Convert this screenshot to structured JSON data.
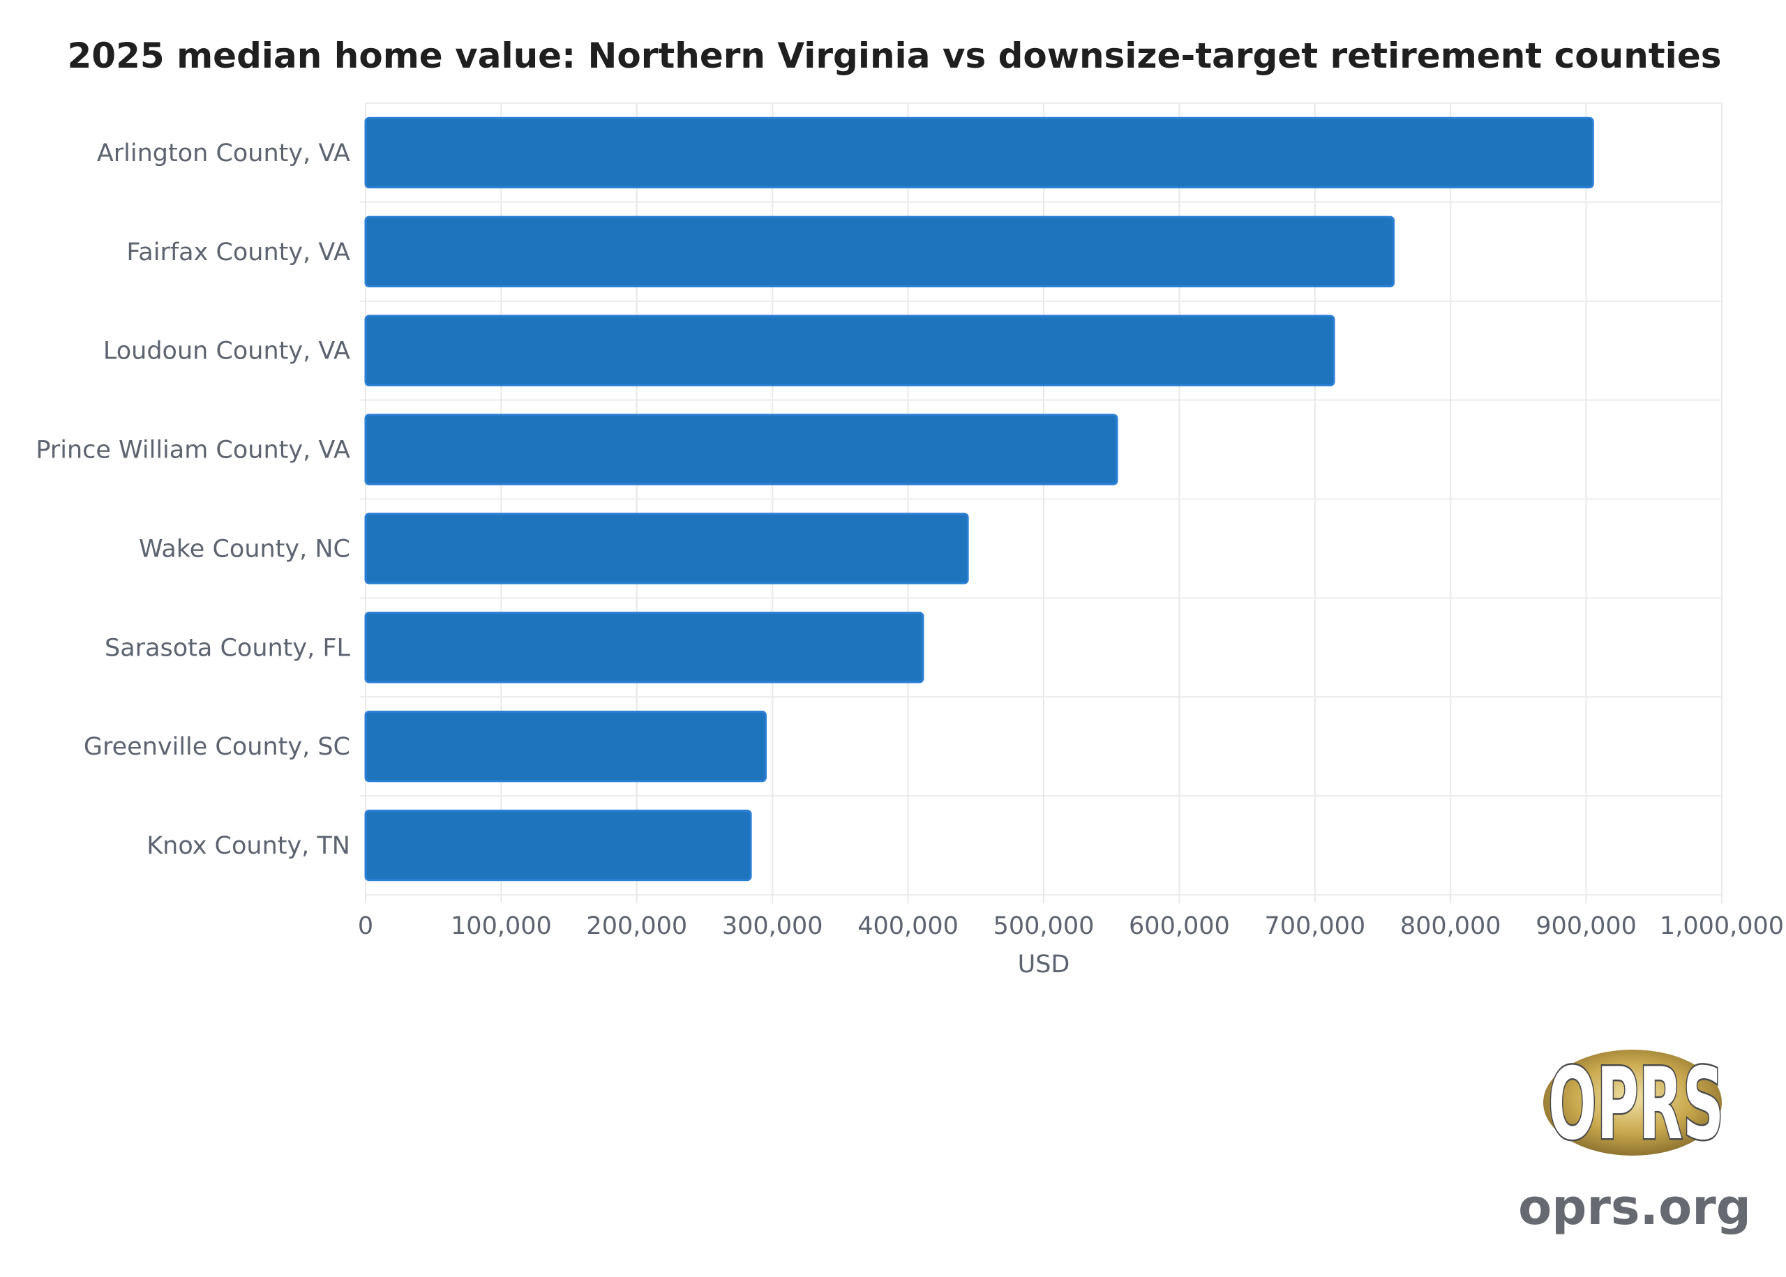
{
  "chart_data": {
    "type": "bar",
    "orientation": "horizontal",
    "title": "2025 median home value: Northern Virginia vs downsize-target retirement counties",
    "xlabel": "USD",
    "ylabel": "",
    "categories": [
      "Arlington County, VA",
      "Fairfax County, VA",
      "Loudoun County, VA",
      "Prince William County, VA",
      "Wake County, NC",
      "Sarasota County, FL",
      "Greenville County, SC",
      "Knox County, TN"
    ],
    "values": [
      905000,
      758000,
      714000,
      554000,
      444000,
      411000,
      295000,
      284000
    ],
    "xlim": [
      0,
      1000000
    ],
    "x_ticks": [
      "0",
      "100,000",
      "200,000",
      "300,000",
      "400,000",
      "500,000",
      "600,000",
      "700,000",
      "800,000",
      "900,000",
      "1,000,000"
    ],
    "grid": true,
    "bar_color": "#1f74be",
    "bar_edge_color": "#2b7fd4"
  },
  "branding": {
    "logo_text": "OPRS",
    "logo_icon": "oprs-seal-logo",
    "url": "oprs.org",
    "logo_gold": "#c9a94e",
    "url_color": "#666a70"
  }
}
